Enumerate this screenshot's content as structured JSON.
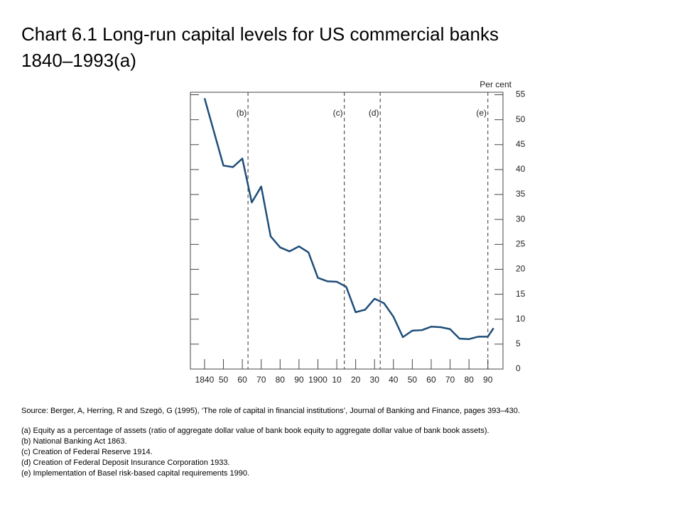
{
  "chart_data": {
    "type": "line",
    "title": [
      "Chart 6.1  Long-run capital levels for US commercial banks",
      "1840–1993(a)"
    ],
    "y_axis_label": "Per cent",
    "x": [
      1840,
      1850,
      1855,
      1860,
      1865,
      1870,
      1875,
      1880,
      1885,
      1890,
      1895,
      1900,
      1905,
      1910,
      1915,
      1920,
      1925,
      1930,
      1935,
      1940,
      1945,
      1950,
      1955,
      1960,
      1965,
      1970,
      1975,
      1980,
      1985,
      1990,
      1993
    ],
    "values": [
      54.3,
      40.8,
      40.5,
      42.2,
      33.4,
      36.6,
      26.6,
      24.4,
      23.6,
      24.6,
      23.4,
      18.3,
      17.6,
      17.5,
      16.5,
      11.4,
      11.9,
      14.1,
      13.2,
      10.5,
      6.4,
      7.7,
      7.8,
      8.5,
      8.4,
      8.0,
      6.1,
      6.0,
      6.5,
      6.5,
      8.2
    ],
    "color": "#1f4e79",
    "xlim": [
      1832.5,
      1998
    ],
    "xticks": [
      {
        "value": 1840,
        "label": "1840"
      },
      {
        "value": 1850,
        "label": "50"
      },
      {
        "value": 1860,
        "label": "60"
      },
      {
        "value": 1870,
        "label": "70"
      },
      {
        "value": 1880,
        "label": "80"
      },
      {
        "value": 1890,
        "label": "90"
      },
      {
        "value": 1900,
        "label": "1900"
      },
      {
        "value": 1910,
        "label": "10"
      },
      {
        "value": 1920,
        "label": "20"
      },
      {
        "value": 1930,
        "label": "30"
      },
      {
        "value": 1940,
        "label": "40"
      },
      {
        "value": 1950,
        "label": "50"
      },
      {
        "value": 1960,
        "label": "60"
      },
      {
        "value": 1970,
        "label": "70"
      },
      {
        "value": 1980,
        "label": "80"
      },
      {
        "value": 1990,
        "label": "90"
      }
    ],
    "ylim": [
      0,
      55.5
    ],
    "yticks": [
      0,
      5,
      10,
      15,
      20,
      25,
      30,
      35,
      40,
      45,
      50,
      55
    ],
    "annotations": [
      {
        "label": "(b)",
        "x": 1863
      },
      {
        "label": "(c)",
        "x": 1914
      },
      {
        "label": "(d)",
        "x": 1933
      },
      {
        "label": "(e)",
        "x": 1990
      }
    ],
    "notes": [
      "Source:  Berger, A, Herring, R and Szegö, G (1995),  ‘The role of capital in financial institutions’, Journal of Banking and Finance, pages 393–430.",
      "(a)  Equity as a percentage of assets (ratio of aggregate dollar value of bank book equity to aggregate dollar value of bank book assets).",
      "(b)  National Banking Act 1863.",
      "(c)  Creation of Federal Reserve 1914.",
      "(d)  Creation of Federal Deposit Insurance Corporation 1933.",
      "(e)  Implementation of Basel risk-based capital requirements  1990."
    ]
  }
}
